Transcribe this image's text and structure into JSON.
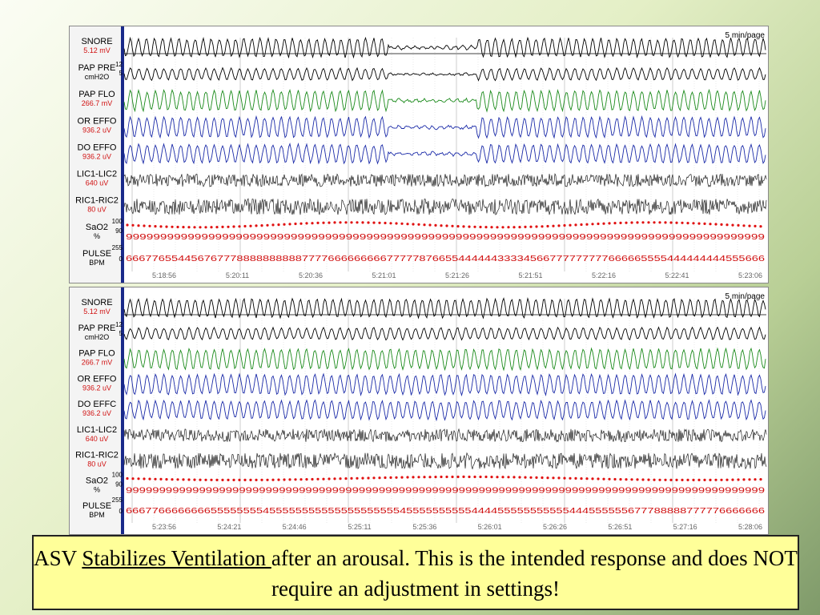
{
  "panels": [
    {
      "id": "top",
      "page_scale": "5 min/page",
      "channels": [
        {
          "name": "SNORE",
          "value": "5.12 mV"
        },
        {
          "name": "PAP PRE",
          "value": "cmH2O"
        },
        {
          "name": "PAP FLO",
          "value": "266.7 mV"
        },
        {
          "name": "OR EFFO",
          "value": "936.2 uV"
        },
        {
          "name": "DO EFFO",
          "value": "936.2 uV"
        },
        {
          "name": "LIC1-LIC2",
          "value": "640 uV"
        },
        {
          "name": "RIC1-RIC2",
          "value": "80 uV"
        },
        {
          "name": "SaO2",
          "value": "%"
        },
        {
          "name": "PULSE",
          "value": "BPM"
        }
      ],
      "scale_ticks": [
        "12",
        "5",
        "100",
        "90",
        "255",
        "0"
      ],
      "timestamps": [
        "5:18:56",
        "5:20:11",
        "5:20:36",
        "5:21:01",
        "5:21:26",
        "5:21:51",
        "5:22:16",
        "5:22:41",
        "5:23:06"
      ],
      "sao2_digits": "999999999999999999999999999999999999999999999999999999999999999999999999999999999999999999999",
      "pulse_digits": "66677655445676777888888888877776666666667777787665544444433334566777777777666665555444444444555666"
    },
    {
      "id": "bottom",
      "page_scale": "5 min/page",
      "channels": [
        {
          "name": "SNORE",
          "value": "5.12 mV"
        },
        {
          "name": "PAP PRE",
          "value": "cmH2O"
        },
        {
          "name": "PAP FLO",
          "value": "266.7 mV"
        },
        {
          "name": "OR EFFO",
          "value": "936.2 uV"
        },
        {
          "name": "DO EFFC",
          "value": "936.2 uV"
        },
        {
          "name": "LIC1-LIC2",
          "value": "640 uV"
        },
        {
          "name": "RIC1-RIC2",
          "value": "80 uV"
        },
        {
          "name": "SaO2",
          "value": "%"
        },
        {
          "name": "PULSE",
          "value": "BPM"
        }
      ],
      "scale_ticks": [
        "12",
        "5",
        "100",
        "90",
        "255",
        "0"
      ],
      "timestamps": [
        "5:23:56",
        "5:24:21",
        "5:24:46",
        "5:25:11",
        "5:25:36",
        "5:26:01",
        "5:26:26",
        "5:26:51",
        "5:27:16",
        "5:28:06"
      ],
      "sao2_digits": "999999999999999999999999999999999999999999999999999999999999999999999999999999999999999999999999",
      "pulse_digits": "66677666666665555555545555555555555555555545555555555444455555555555444555555677788888777776666666"
    }
  ],
  "caption": {
    "prefix": "ASV ",
    "underlined": "Stabilizes Ventilation ",
    "suffix": "after an arousal.  This is the intended response and does NOT require an adjustment in settings!"
  },
  "colors": {
    "snore": "#000000",
    "flow": "#1a8a1a",
    "effort": "#1a2aa8",
    "eeg": "#000000",
    "sao2_dots": "#e01010",
    "digits": "#d01010",
    "label_value": "#d01010"
  }
}
